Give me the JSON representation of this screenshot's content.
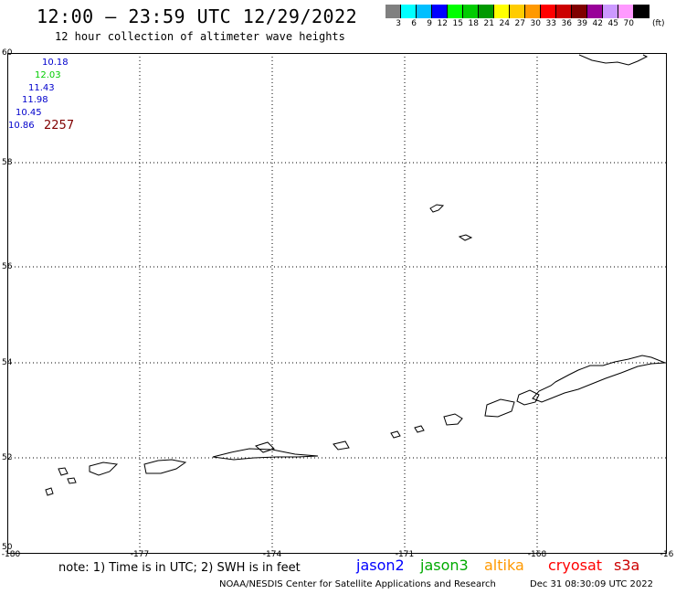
{
  "header": {
    "title": "12:00 – 23:59 UTC 12/29/2022",
    "subtitle": "12 hour collection of altimeter wave heights"
  },
  "scale": {
    "colors": [
      "#808080",
      "#00ffff",
      "#00bfff",
      "#0000ff",
      "#00ff00",
      "#00cc00",
      "#009900",
      "#ffff00",
      "#ffcc00",
      "#ff9900",
      "#ff0000",
      "#cc0000",
      "#800000",
      "#990099",
      "#cc99ff",
      "#ff99ff",
      "#000000"
    ],
    "labels": [
      "3",
      "6",
      "9",
      "12",
      "15",
      "18",
      "21",
      "24",
      "27",
      "30",
      "33",
      "36",
      "39",
      "42",
      "45",
      "70"
    ],
    "unit": "(ft)"
  },
  "map": {
    "lat_labels": [
      "60",
      "58",
      "56",
      "54",
      "52",
      "50"
    ],
    "lon_labels": [
      "-180",
      "-177",
      "-174",
      "-171",
      "-168",
      "-16"
    ]
  },
  "readings": [
    {
      "value": "10.18",
      "color": "#0000cc"
    },
    {
      "value": "12.03",
      "color": "#00cc00"
    },
    {
      "value": "11.43",
      "color": "#0000cc"
    },
    {
      "value": "11.98",
      "color": "#0000cc"
    },
    {
      "value": "10.45",
      "color": "#0000cc"
    },
    {
      "value": "10.86",
      "color": "#0000cc"
    }
  ],
  "pass_time": "2257",
  "note": "note: 1) Time is in UTC; 2) SWH is in feet",
  "satellites": [
    {
      "name": "jason2",
      "color": "#0000ff"
    },
    {
      "name": "jason3",
      "color": "#00aa00"
    },
    {
      "name": "altika",
      "color": "#ff9900"
    },
    {
      "name": "cryosat",
      "color": "#ff0000"
    },
    {
      "name": "s3a",
      "color": "#cc0000"
    }
  ],
  "footer": {
    "credit": "NOAA/NESDIS Center for Satellite Applications and Research",
    "timestamp": "Dec 31 08:30:09 UTC 2022"
  }
}
